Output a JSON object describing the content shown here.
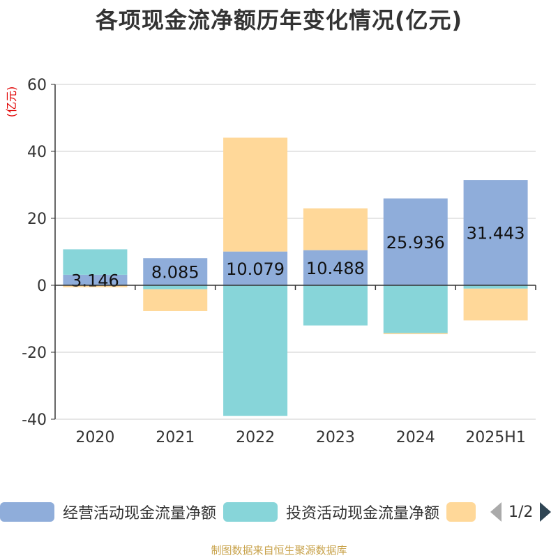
{
  "chart_data": {
    "type": "bar",
    "stacked": true,
    "title": "各项现金流净额历年变化情况(亿元)",
    "ylabel": "(亿元)",
    "categories": [
      "2020",
      "2021",
      "2022",
      "2023",
      "2024",
      "2025H1"
    ],
    "ylim": [
      -40,
      60
    ],
    "yticks": [
      -40,
      -20,
      0,
      20,
      40,
      60
    ],
    "grid": true,
    "legend_position": "bottom",
    "series": [
      {
        "name": "经营活动现金流量净额",
        "color": "#8fadda",
        "values": [
          3.146,
          8.085,
          10.079,
          10.488,
          25.936,
          31.443
        ],
        "show_labels": true
      },
      {
        "name": "投资活动现金流量净额",
        "color": "#87d5d9",
        "values": [
          7.6,
          -1.2,
          -39.0,
          -12.0,
          -14.3,
          -1.0
        ],
        "show_labels": false
      },
      {
        "name": "",
        "color": "#ffd899",
        "values": [
          -0.6,
          -6.5,
          34.0,
          12.5,
          -0.3,
          -9.5
        ],
        "show_labels": false
      }
    ]
  },
  "legend": {
    "page_text": "1/2"
  },
  "source_text": "制图数据来自恒生聚源数据库",
  "colors": {
    "axis": "#333333",
    "grid": "#cccccc",
    "ylabel": "#e00000"
  }
}
